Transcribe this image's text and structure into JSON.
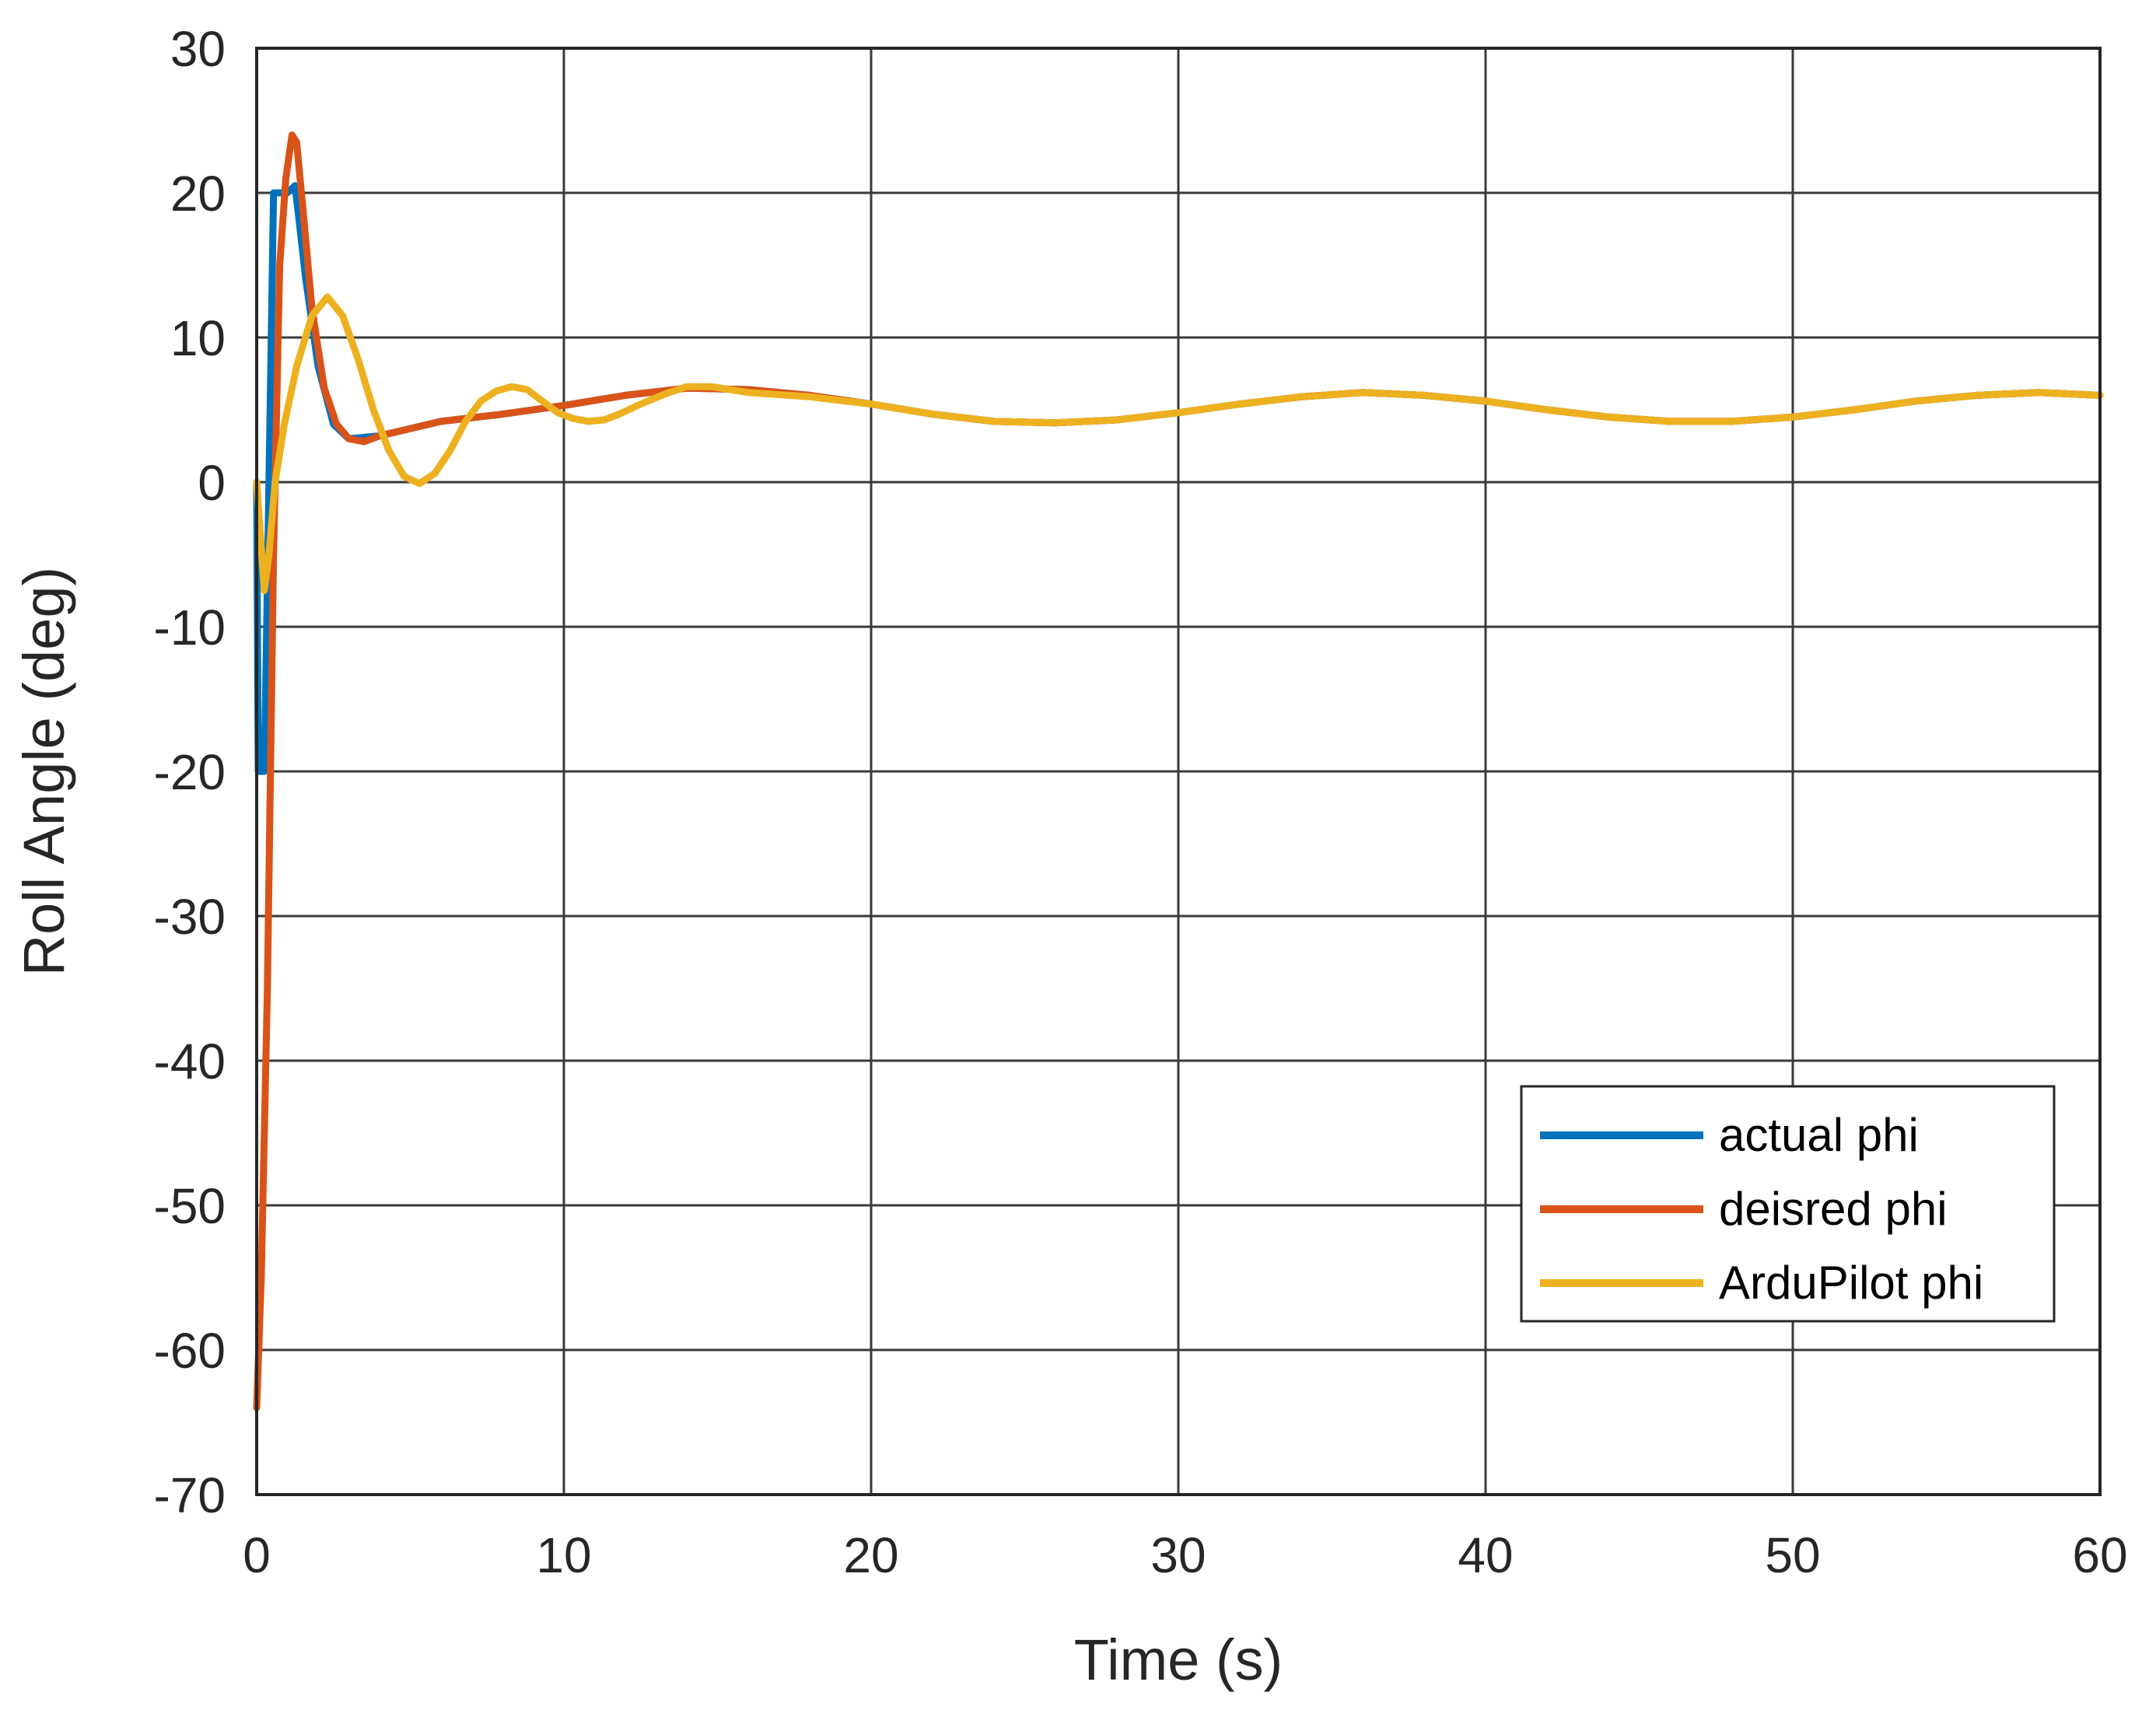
{
  "chart_data": {
    "type": "line",
    "title": "",
    "xlabel": "Time (s)",
    "ylabel": "Roll Angle (deg)",
    "xlim": [
      0,
      60
    ],
    "ylim": [
      -70,
      30
    ],
    "xticks": [
      0,
      10,
      20,
      30,
      40,
      50,
      60
    ],
    "yticks": [
      30,
      20,
      10,
      0,
      -10,
      -20,
      -30,
      -40,
      -50,
      -60,
      -70
    ],
    "grid": true,
    "legend_position": "lower-right",
    "series": [
      {
        "name": "actual phi",
        "color": "#0072BD",
        "points": [
          [
            0,
            0
          ],
          [
            0.05,
            -20
          ],
          [
            0.25,
            -20
          ],
          [
            0.4,
            0
          ],
          [
            0.55,
            20
          ],
          [
            1.0,
            20
          ],
          [
            1.25,
            20.5
          ],
          [
            1.6,
            14
          ],
          [
            2.0,
            8
          ],
          [
            2.5,
            4
          ],
          [
            3.0,
            3
          ],
          [
            4.0,
            3.2
          ],
          [
            6.0,
            4.2
          ],
          [
            8.0,
            4.7
          ],
          [
            10.0,
            5.3
          ],
          [
            12.0,
            6.0
          ],
          [
            14.0,
            6.5
          ],
          [
            16.0,
            6.4
          ],
          [
            18.0,
            6.0
          ],
          [
            20.0,
            5.4
          ],
          [
            22.0,
            4.7
          ],
          [
            24.0,
            4.2
          ],
          [
            26.0,
            4.1
          ],
          [
            28.0,
            4.3
          ],
          [
            30.0,
            4.8
          ],
          [
            32.0,
            5.4
          ],
          [
            34.0,
            5.9
          ],
          [
            36.0,
            6.2
          ],
          [
            38.0,
            6.0
          ],
          [
            40.0,
            5.6
          ],
          [
            42.0,
            5.0
          ],
          [
            44.0,
            4.5
          ],
          [
            46.0,
            4.2
          ],
          [
            48.0,
            4.2
          ],
          [
            50.0,
            4.5
          ],
          [
            52.0,
            5.0
          ],
          [
            54.0,
            5.6
          ],
          [
            56.0,
            6.0
          ],
          [
            58.0,
            6.2
          ],
          [
            60.0,
            6.0
          ]
        ]
      },
      {
        "name": "deisred phi",
        "color": "#D95319",
        "points": [
          [
            0,
            -64
          ],
          [
            0.15,
            -55
          ],
          [
            0.35,
            -35
          ],
          [
            0.55,
            -5
          ],
          [
            0.75,
            15
          ],
          [
            0.95,
            21
          ],
          [
            1.15,
            24
          ],
          [
            1.3,
            23.5
          ],
          [
            1.5,
            19
          ],
          [
            1.8,
            12
          ],
          [
            2.2,
            6.5
          ],
          [
            2.6,
            4
          ],
          [
            3.0,
            3
          ],
          [
            3.5,
            2.8
          ],
          [
            4.0,
            3.2
          ],
          [
            6.0,
            4.2
          ],
          [
            8.0,
            4.7
          ],
          [
            10.0,
            5.3
          ],
          [
            12.0,
            6.0
          ],
          [
            14.0,
            6.5
          ],
          [
            16.0,
            6.4
          ],
          [
            18.0,
            6.0
          ],
          [
            20.0,
            5.4
          ],
          [
            22.0,
            4.7
          ],
          [
            24.0,
            4.2
          ],
          [
            26.0,
            4.1
          ],
          [
            28.0,
            4.3
          ],
          [
            30.0,
            4.8
          ],
          [
            32.0,
            5.4
          ],
          [
            34.0,
            5.9
          ],
          [
            36.0,
            6.2
          ],
          [
            38.0,
            6.0
          ],
          [
            40.0,
            5.6
          ],
          [
            42.0,
            5.0
          ],
          [
            44.0,
            4.5
          ],
          [
            46.0,
            4.2
          ],
          [
            48.0,
            4.2
          ],
          [
            50.0,
            4.5
          ],
          [
            52.0,
            5.0
          ],
          [
            54.0,
            5.6
          ],
          [
            56.0,
            6.0
          ],
          [
            58.0,
            6.2
          ],
          [
            60.0,
            6.0
          ]
        ]
      },
      {
        "name": "ArduPilot phi",
        "color": "#EDB120",
        "points": [
          [
            0,
            0
          ],
          [
            0.1,
            -3
          ],
          [
            0.25,
            -7.5
          ],
          [
            0.4,
            -5
          ],
          [
            0.6,
            0
          ],
          [
            0.9,
            4
          ],
          [
            1.3,
            8
          ],
          [
            1.8,
            11.5
          ],
          [
            2.3,
            12.8
          ],
          [
            2.8,
            11.5
          ],
          [
            3.3,
            8.5
          ],
          [
            3.8,
            5
          ],
          [
            4.3,
            2.2
          ],
          [
            4.8,
            0.4
          ],
          [
            5.3,
            -0.1
          ],
          [
            5.8,
            0.6
          ],
          [
            6.3,
            2.2
          ],
          [
            6.8,
            4.2
          ],
          [
            7.3,
            5.6
          ],
          [
            7.8,
            6.3
          ],
          [
            8.3,
            6.6
          ],
          [
            8.8,
            6.4
          ],
          [
            9.3,
            5.6
          ],
          [
            9.8,
            4.8
          ],
          [
            10.3,
            4.4
          ],
          [
            10.8,
            4.2
          ],
          [
            11.3,
            4.3
          ],
          [
            11.8,
            4.7
          ],
          [
            12.5,
            5.4
          ],
          [
            13.3,
            6.1
          ],
          [
            14.0,
            6.6
          ],
          [
            14.8,
            6.6
          ],
          [
            16.0,
            6.2
          ],
          [
            18.0,
            5.9
          ],
          [
            20.0,
            5.4
          ],
          [
            22.0,
            4.7
          ],
          [
            24.0,
            4.2
          ],
          [
            26.0,
            4.1
          ],
          [
            28.0,
            4.3
          ],
          [
            30.0,
            4.8
          ],
          [
            32.0,
            5.4
          ],
          [
            34.0,
            5.9
          ],
          [
            36.0,
            6.2
          ],
          [
            38.0,
            6.0
          ],
          [
            40.0,
            5.6
          ],
          [
            42.0,
            5.0
          ],
          [
            44.0,
            4.5
          ],
          [
            46.0,
            4.2
          ],
          [
            48.0,
            4.2
          ],
          [
            50.0,
            4.5
          ],
          [
            52.0,
            5.0
          ],
          [
            54.0,
            5.6
          ],
          [
            56.0,
            6.0
          ],
          [
            58.0,
            6.2
          ],
          [
            60.0,
            6.0
          ]
        ]
      }
    ]
  }
}
